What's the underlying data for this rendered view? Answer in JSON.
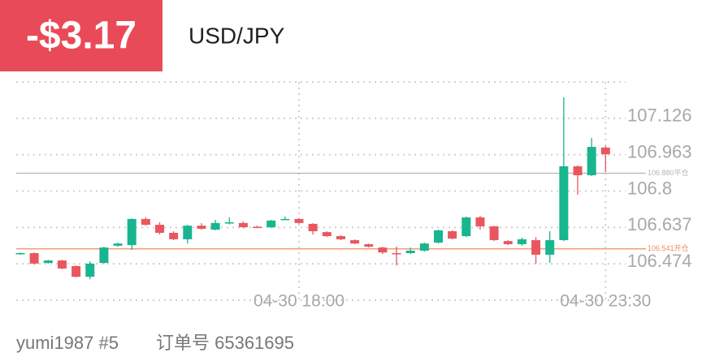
{
  "header": {
    "pnl": "-$3.17",
    "symbol": "USD/JPY"
  },
  "chart_data": {
    "type": "candlestick",
    "categories": [
      null,
      null,
      null,
      null,
      null,
      null,
      null,
      null,
      null,
      null,
      null,
      null,
      null,
      null,
      null,
      null,
      null,
      null,
      null,
      null,
      "04-30 18:00",
      null,
      null,
      null,
      null,
      null,
      null,
      null,
      null,
      null,
      null,
      null,
      null,
      null,
      null,
      null,
      null,
      null,
      null,
      null,
      null,
      null,
      "04-30 23:30"
    ],
    "open": [
      106.518,
      106.522,
      106.478,
      106.489,
      106.464,
      106.416,
      106.478,
      106.555,
      106.558,
      106.675,
      106.649,
      106.613,
      106.584,
      106.645,
      106.627,
      106.657,
      106.657,
      106.64,
      106.638,
      106.673,
      106.675,
      106.653,
      106.616,
      106.598,
      106.58,
      106.562,
      106.547,
      106.522,
      106.522,
      106.533,
      106.569,
      106.62,
      106.598,
      106.682,
      106.642,
      106.576,
      106.562,
      106.58,
      106.515,
      106.58,
      106.911,
      106.871,
      106.995
    ],
    "high": [
      106.525,
      106.525,
      106.492,
      106.492,
      106.467,
      106.485,
      106.551,
      106.569,
      106.678,
      106.682,
      106.66,
      106.62,
      106.649,
      106.656,
      106.671,
      106.682,
      106.664,
      106.645,
      106.671,
      106.686,
      106.678,
      106.656,
      106.62,
      106.602,
      106.584,
      106.565,
      106.551,
      106.551,
      106.547,
      106.569,
      106.627,
      106.624,
      106.686,
      106.689,
      106.645,
      106.58,
      106.591,
      106.594,
      106.62,
      107.22,
      106.915,
      107.038,
      107.002
    ],
    "low": [
      106.515,
      106.471,
      106.475,
      106.449,
      106.413,
      106.405,
      106.475,
      106.551,
      106.536,
      106.645,
      106.605,
      106.58,
      106.565,
      106.627,
      106.624,
      106.651,
      106.634,
      106.634,
      106.634,
      106.671,
      106.653,
      106.605,
      106.594,
      106.58,
      106.562,
      106.547,
      106.518,
      106.467,
      106.518,
      106.529,
      106.565,
      106.584,
      106.594,
      106.627,
      106.576,
      106.558,
      106.555,
      106.475,
      106.478,
      106.576,
      106.784,
      106.867,
      106.885
    ],
    "close": [
      106.522,
      106.475,
      106.489,
      106.453,
      106.416,
      106.475,
      106.547,
      106.565,
      106.675,
      106.649,
      106.613,
      106.584,
      106.645,
      106.631,
      106.657,
      106.66,
      106.638,
      106.638,
      106.668,
      106.675,
      106.657,
      106.62,
      106.598,
      106.584,
      106.565,
      106.551,
      106.525,
      106.52,
      106.533,
      106.565,
      106.624,
      106.587,
      106.682,
      106.642,
      106.58,
      106.562,
      106.584,
      106.515,
      106.58,
      106.911,
      106.871,
      106.998,
      106.965
    ],
    "up_color": "#19b58f",
    "down_color": "#ea5660",
    "ylim": [
      106.311,
      107.289
    ],
    "yticks": [
      106.474,
      106.637,
      106.8,
      106.963,
      107.126
    ],
    "grid": true,
    "reference_lines": [
      {
        "value": 106.88,
        "label": "106.880平仓",
        "color": "#b5b5b5"
      },
      {
        "value": 106.541,
        "label": "106.541开仓",
        "color": "#f08a5d"
      }
    ]
  },
  "footer": {
    "user": "yumi1987 #5",
    "order": "订单号 65361695"
  }
}
